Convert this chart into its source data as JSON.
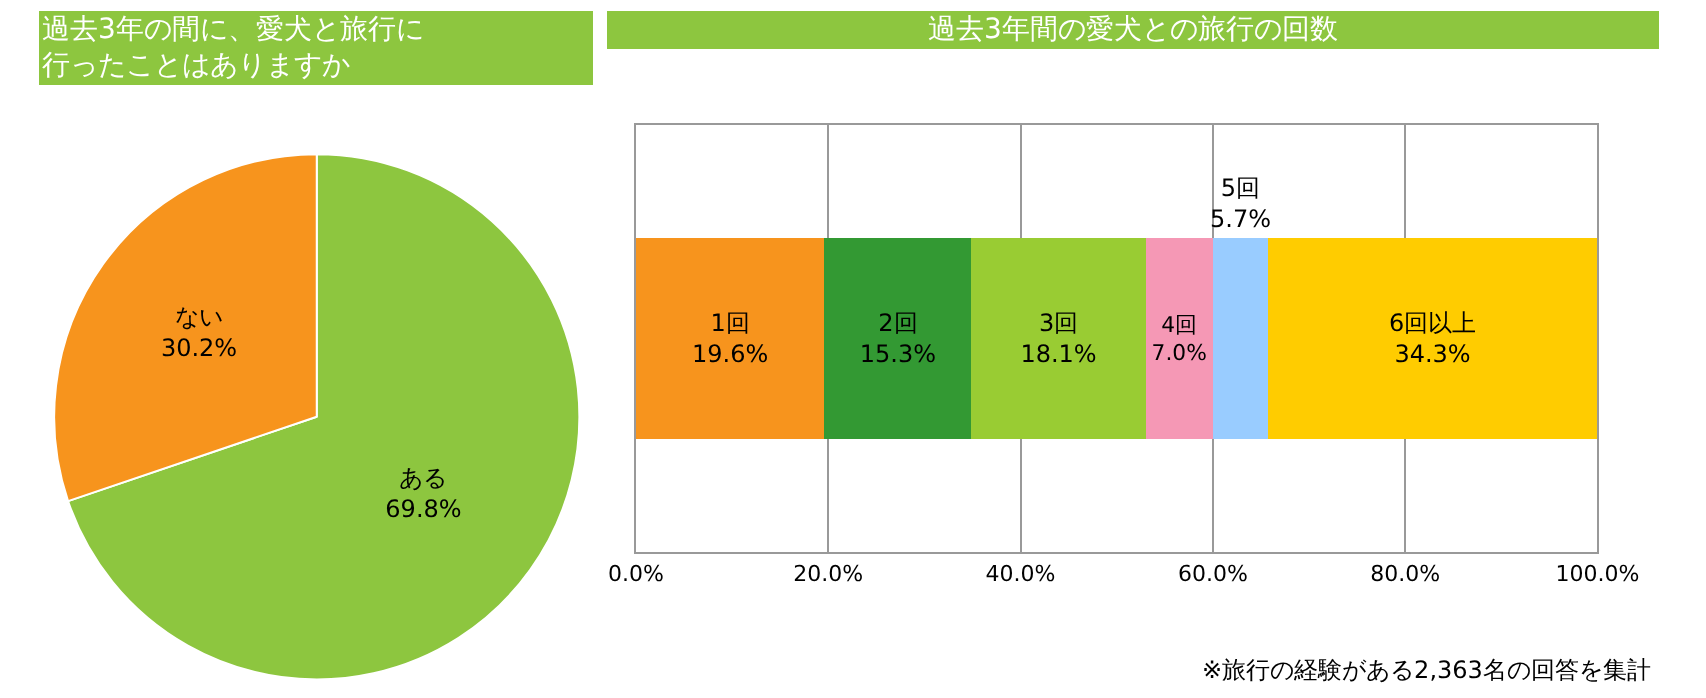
{
  "chart_data": [
    {
      "type": "pie",
      "title": "過去3年の間に、愛犬と旅行に行ったことはありますか",
      "categories": [
        "ある",
        "ない"
      ],
      "values": [
        69.8,
        30.2
      ],
      "colors": [
        "#8dc63f",
        "#f7941d"
      ],
      "value_labels": [
        "69.8%",
        "30.2%"
      ],
      "legend": false
    },
    {
      "type": "bar",
      "title": "過去3年間の愛犬との旅行の回数",
      "orientation": "horizontal",
      "stacked": true,
      "categories": [
        null
      ],
      "xlim": [
        0,
        100
      ],
      "xticks": [
        {
          "value": 0,
          "label": "0.0%"
        },
        {
          "value": 20,
          "label": "20.0%"
        },
        {
          "value": 40,
          "label": "40.0%"
        },
        {
          "value": 60,
          "label": "60.0%"
        },
        {
          "value": 80,
          "label": "80.0%"
        },
        {
          "value": 100,
          "label": "100.0%"
        }
      ],
      "grid": "x",
      "legend": false,
      "series": [
        {
          "name": "1回",
          "color": "#f7941d",
          "values": [
            19.6
          ],
          "value_labels": [
            "19.6%"
          ]
        },
        {
          "name": "2回",
          "color": "#339933",
          "values": [
            15.3
          ],
          "value_labels": [
            "15.3%"
          ]
        },
        {
          "name": "3回",
          "color": "#99cc33",
          "values": [
            18.1
          ],
          "value_labels": [
            "18.1%"
          ]
        },
        {
          "name": "4回",
          "color": "#f598b5",
          "values": [
            7.0
          ],
          "value_labels": [
            "7.0%"
          ]
        },
        {
          "name": "5回",
          "color": "#99ccff",
          "values": [
            5.7
          ],
          "value_labels": [
            "5.7%"
          ]
        },
        {
          "name": "6回以上",
          "color": "#ffcc00",
          "values": [
            34.3
          ],
          "value_labels": [
            "34.3%"
          ]
        }
      ],
      "annotations": [
        "※旅行の経験がある2,363名の回答を集計"
      ]
    }
  ]
}
